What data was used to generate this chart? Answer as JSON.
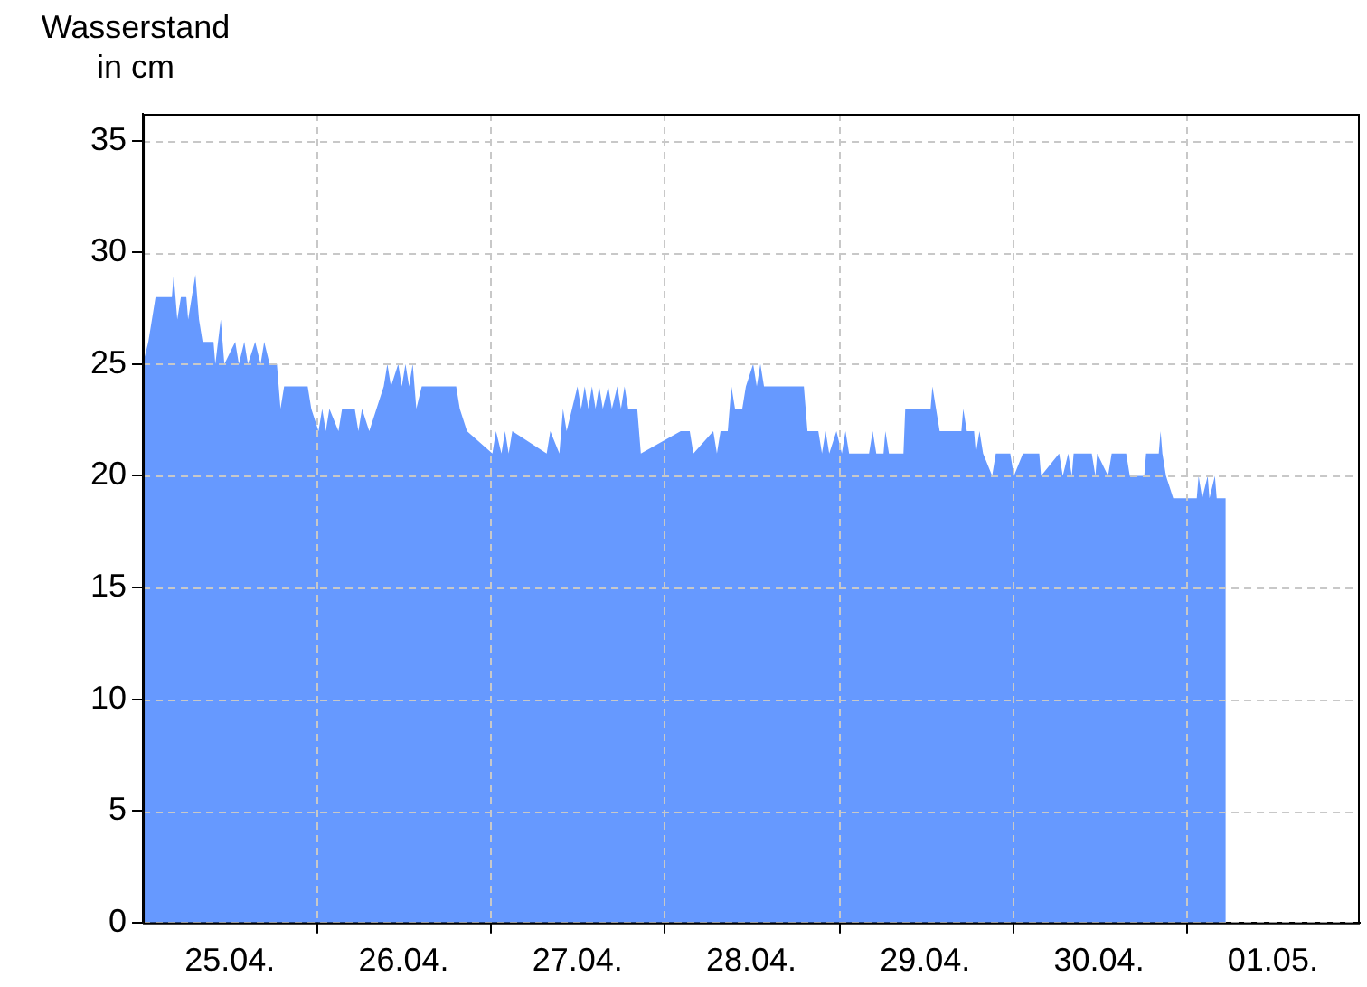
{
  "chart_data": {
    "type": "area",
    "ylabel": "Wasserstand in cm",
    "color": "#6699ff",
    "x": [
      "--04-25T00:00",
      "--04-25T00:45",
      "--04-25T01:45",
      "--04-25T04:00",
      "--04-25T04:15",
      "--04-25T04:45",
      "--04-25T05:15",
      "--04-25T06:00",
      "--04-25T06:15",
      "--04-25T06:45",
      "--04-25T07:15",
      "--04-25T07:45",
      "--04-25T08:15",
      "--04-25T09:45",
      "--04-25T10:00",
      "--04-25T10:45",
      "--04-25T11:15",
      "--04-25T12:45",
      "--04-25T13:15",
      "--04-25T14:00",
      "--04-25T14:30",
      "--04-25T15:30",
      "--04-25T16:15",
      "--04-25T16:45",
      "--04-25T17:30",
      "--04-25T18:30",
      "--04-25T19:00",
      "--04-25T19:30",
      "--04-25T21:00",
      "--04-25T22:45",
      "--04-25T23:15",
      "--04-26T00:15",
      "--04-26T00:45",
      "--04-26T01:15",
      "--04-26T01:45",
      "--04-26T03:00",
      "--04-26T03:30",
      "--04-26T05:15",
      "--04-26T05:45",
      "--04-26T06:15",
      "--04-26T07:15",
      "--04-26T08:15",
      "--04-26T09:15",
      "--04-26T09:45",
      "--04-26T10:15",
      "--04-26T11:15",
      "--04-26T11:45",
      "--04-26T12:15",
      "--04-26T12:45",
      "--04-26T13:15",
      "--04-26T13:45",
      "--04-26T14:30",
      "--04-26T19:15",
      "--04-26T19:45",
      "--04-26T20:45",
      "--04-27T00:15",
      "--04-27T00:45",
      "--04-27T01:30",
      "--04-27T02:00",
      "--04-27T02:30",
      "--04-27T03:00",
      "--04-27T07:45",
      "--04-27T08:15",
      "--04-27T09:30",
      "--04-27T10:00",
      "--04-27T10:30",
      "--04-27T11:15",
      "--04-27T12:00",
      "--04-27T12:30",
      "--04-27T13:00",
      "--04-27T13:30",
      "--04-27T14:00",
      "--04-27T14:30",
      "--04-27T15:00",
      "--04-27T15:30",
      "--04-27T16:15",
      "--04-27T16:45",
      "--04-27T17:30",
      "--04-27T18:00",
      "--04-27T18:30",
      "--04-27T19:00",
      "--04-27T20:15",
      "--04-27T20:45",
      "--04-28T02:15",
      "--04-28T03:30",
      "--04-28T04:00",
      "--04-28T06:45",
      "--04-28T07:15",
      "--04-28T07:45",
      "--04-28T08:45",
      "--04-28T09:15",
      "--04-28T09:45",
      "--04-28T10:45",
      "--04-28T11:15",
      "--04-28T12:15",
      "--04-28T12:45",
      "--04-28T13:15",
      "--04-28T13:45",
      "--04-28T19:15",
      "--04-28T19:45",
      "--04-28T21:15",
      "--04-28T21:45",
      "--04-28T22:15",
      "--04-28T22:45",
      "--04-28T23:45",
      "--04-29T00:30",
      "--04-29T01:00",
      "--04-29T01:30",
      "--04-29T04:15",
      "--04-29T04:45",
      "--04-29T05:15",
      "--04-29T06:15",
      "--04-29T06:30",
      "--04-29T07:00",
      "--04-29T09:00",
      "--04-29T09:15",
      "--04-29T12:45",
      "--04-29T13:00",
      "--04-29T13:30",
      "--04-29T14:00",
      "--04-29T17:00",
      "--04-29T17:15",
      "--04-29T17:45",
      "--04-29T18:45",
      "--04-29T19:00",
      "--04-29T19:30",
      "--04-29T20:00",
      "--04-29T21:15",
      "--04-29T21:45",
      "--04-29T23:45",
      "--04-30T00:15",
      "--04-30T01:30",
      "--04-30T03:45",
      "--04-30T04:00",
      "--04-30T06:30",
      "--04-30T07:00",
      "--04-30T07:45",
      "--04-30T08:15",
      "--04-30T08:30",
      "--04-30T11:00",
      "--04-30T11:30",
      "--04-30T11:45",
      "--04-30T13:15",
      "--04-30T13:45",
      "--04-30T15:45",
      "--04-30T16:15",
      "--04-30T18:15",
      "--04-30T18:30",
      "--04-30T20:15",
      "--04-30T20:30",
      "--04-30T20:45",
      "--04-30T21:15",
      "--04-30T22:15",
      "--05-01T01:30",
      "--05-01T01:45",
      "--05-01T02:15",
      "--05-01T03:00",
      "--05-01T03:15",
      "--05-01T04:00",
      "--05-01T04:15",
      "--05-01T05:30"
    ],
    "values": [
      25,
      26,
      28,
      28,
      29,
      27,
      28,
      28,
      27,
      28,
      29,
      27,
      26,
      26,
      25,
      27,
      25,
      26,
      25,
      26,
      25,
      26,
      25,
      26,
      25,
      25,
      23,
      24,
      24,
      24,
      23,
      22,
      23,
      22,
      23,
      22,
      23,
      23,
      22,
      23,
      22,
      23,
      24,
      25,
      24,
      25,
      24,
      25,
      24,
      25,
      23,
      24,
      24,
      23,
      22,
      21,
      22,
      21,
      22,
      21,
      22,
      21,
      22,
      21,
      23,
      22,
      23,
      24,
      23,
      24,
      23,
      24,
      23,
      24,
      23,
      24,
      23,
      24,
      23,
      24,
      23,
      23,
      21,
      22,
      22,
      21,
      22,
      21,
      22,
      22,
      24,
      23,
      23,
      24,
      25,
      24,
      25,
      24,
      24,
      22,
      22,
      21,
      22,
      21,
      22,
      21,
      22,
      21,
      21,
      22,
      21,
      21,
      22,
      21,
      21,
      23,
      23,
      24,
      23,
      22,
      22,
      23,
      22,
      22,
      21,
      22,
      21,
      20,
      21,
      21,
      20,
      21,
      21,
      20,
      21,
      20,
      21,
      20,
      21,
      21,
      20,
      21,
      20,
      21,
      21,
      20,
      20,
      21,
      21,
      22,
      21,
      20,
      19,
      19,
      20,
      19,
      20,
      19,
      20,
      19,
      19
    ],
    "xlim": [
      "--04-25T00:00",
      "--05-02T00:00"
    ],
    "xticks": [
      {
        "value": "--04-25T12:00",
        "label": "25.04."
      },
      {
        "value": "--04-26T00:00",
        "label": null
      },
      {
        "value": "--04-26T12:00",
        "label": "26.04."
      },
      {
        "value": "--04-27T00:00",
        "label": null
      },
      {
        "value": "--04-27T12:00",
        "label": "27.04."
      },
      {
        "value": "--04-28T00:00",
        "label": null
      },
      {
        "value": "--04-28T12:00",
        "label": "28.04."
      },
      {
        "value": "--04-29T00:00",
        "label": null
      },
      {
        "value": "--04-29T12:00",
        "label": "29.04."
      },
      {
        "value": "--04-30T00:00",
        "label": null
      },
      {
        "value": "--04-30T12:00",
        "label": "30.04."
      },
      {
        "value": "--05-01T00:00",
        "label": null
      },
      {
        "value": "--05-01T12:00",
        "label": "01.05."
      }
    ],
    "ylim": [
      0,
      36.2
    ],
    "yticks": [
      0,
      5,
      10,
      15,
      20,
      25,
      30,
      35
    ],
    "grid": true
  }
}
